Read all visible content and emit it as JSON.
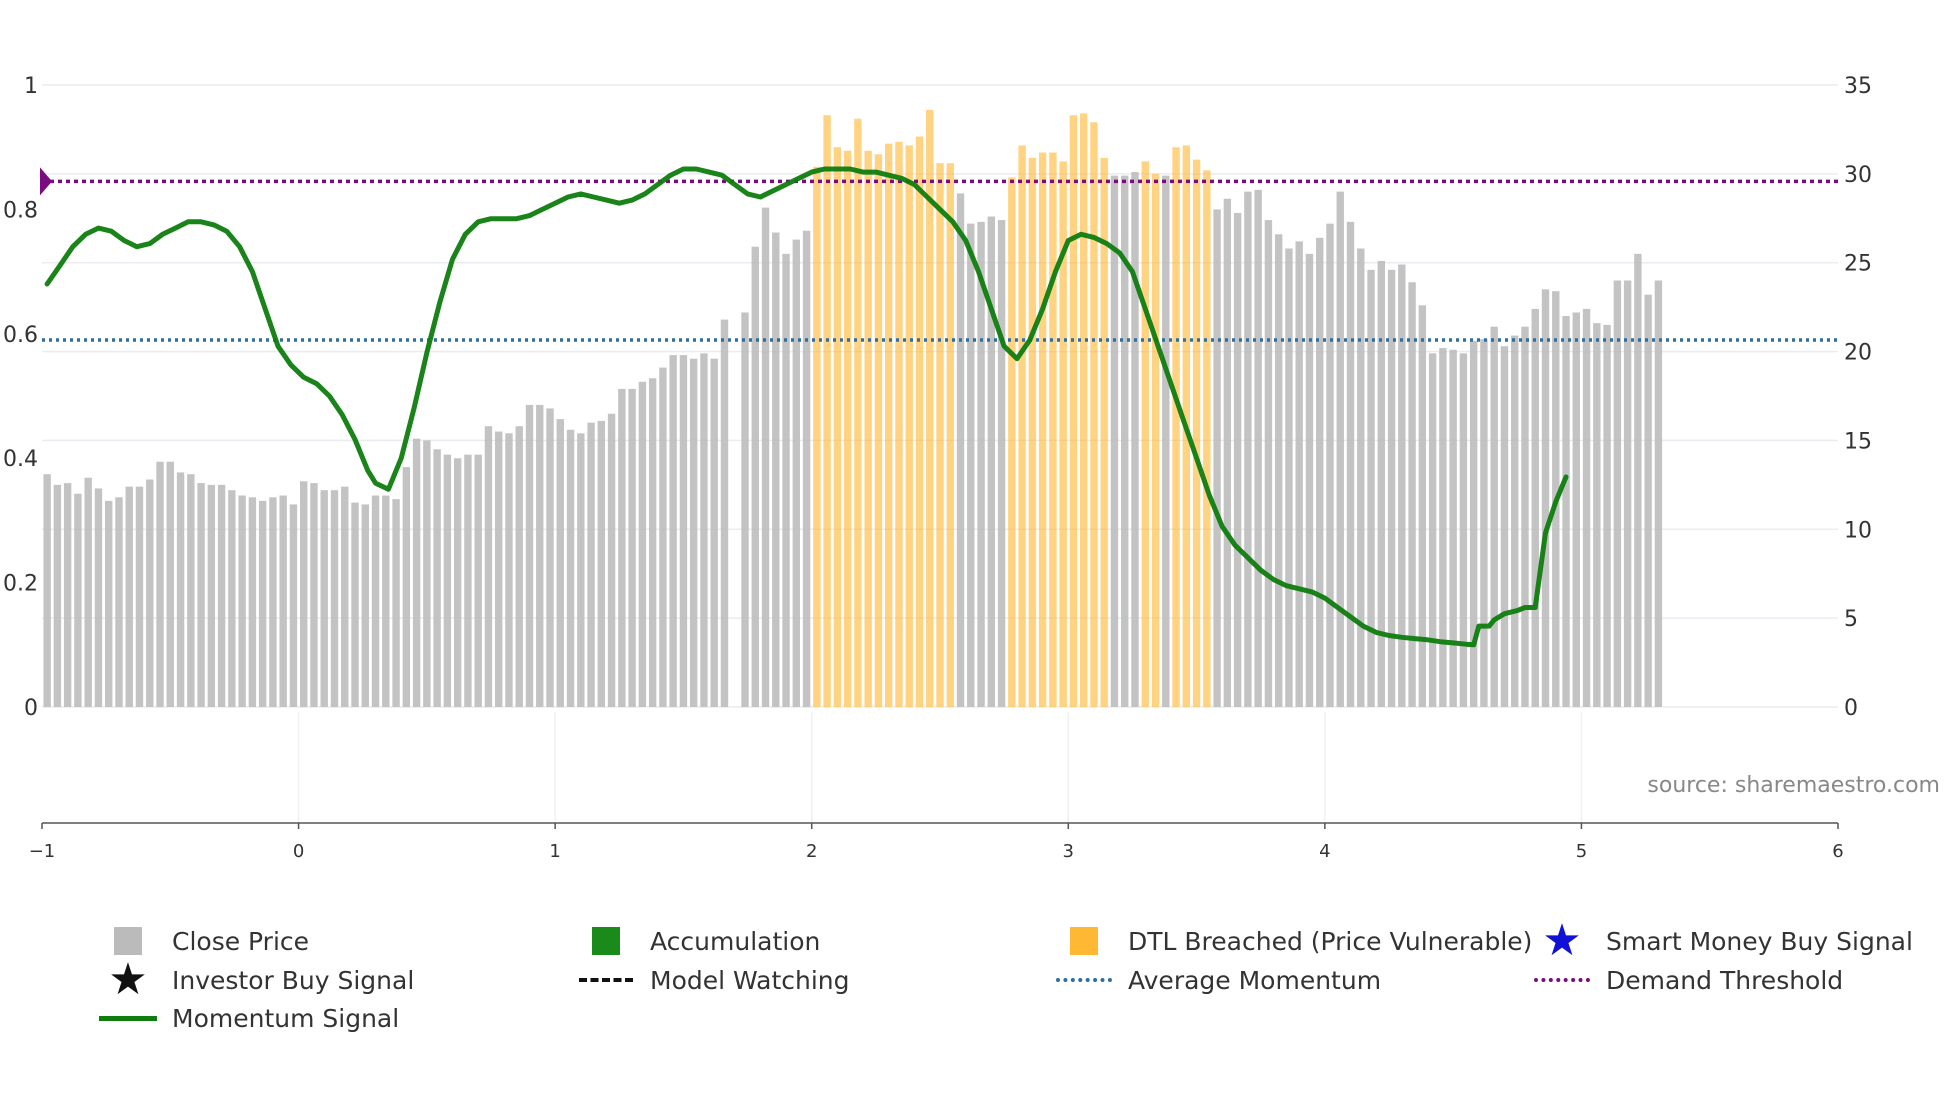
{
  "chart_data": {
    "type": "bar+line",
    "source_label": "source: sharemaestro.com",
    "x_axis": {
      "range": [
        -1,
        6
      ],
      "ticks": [
        "−1",
        "0",
        "1",
        "2",
        "3",
        "4",
        "5",
        "6"
      ]
    },
    "y_left": {
      "range": [
        0,
        1
      ],
      "ticks": [
        "0",
        "0.2",
        "0.4",
        "0.6",
        "0.8",
        "1"
      ]
    },
    "y_right": {
      "range": [
        0,
        35
      ],
      "ticks": [
        "0",
        "5",
        "10",
        "15",
        "20",
        "25",
        "30",
        "35"
      ]
    },
    "average_momentum": 0.59,
    "demand_threshold": 0.845,
    "colors": {
      "close_price": "#bbbbbb",
      "accumulation": "#1a8a1a",
      "dtl_breached": "#ffb833",
      "momentum": "#0e7d0e",
      "average_momentum": "#2e6fa3",
      "demand_threshold": "#7a0c7f",
      "smart_money": "#1010d8",
      "investor": "#111111"
    },
    "close_price_bars": [
      {
        "x": -0.98,
        "v": 13.1,
        "c": "g"
      },
      {
        "x": -0.94,
        "v": 12.5,
        "c": "g"
      },
      {
        "x": -0.9,
        "v": 12.6,
        "c": "g"
      },
      {
        "x": -0.86,
        "v": 12.0,
        "c": "g"
      },
      {
        "x": -0.82,
        "v": 12.9,
        "c": "g"
      },
      {
        "x": -0.78,
        "v": 12.3,
        "c": "g"
      },
      {
        "x": -0.74,
        "v": 11.6,
        "c": "g"
      },
      {
        "x": -0.7,
        "v": 11.8,
        "c": "g"
      },
      {
        "x": -0.66,
        "v": 12.4,
        "c": "g"
      },
      {
        "x": -0.62,
        "v": 12.4,
        "c": "g"
      },
      {
        "x": -0.58,
        "v": 12.8,
        "c": "g"
      },
      {
        "x": -0.54,
        "v": 13.8,
        "c": "g"
      },
      {
        "x": -0.5,
        "v": 13.8,
        "c": "g"
      },
      {
        "x": -0.46,
        "v": 13.2,
        "c": "g"
      },
      {
        "x": -0.42,
        "v": 13.1,
        "c": "g"
      },
      {
        "x": -0.38,
        "v": 12.6,
        "c": "g"
      },
      {
        "x": -0.34,
        "v": 12.5,
        "c": "g"
      },
      {
        "x": -0.3,
        "v": 12.5,
        "c": "g"
      },
      {
        "x": -0.26,
        "v": 12.2,
        "c": "g"
      },
      {
        "x": -0.22,
        "v": 11.9,
        "c": "g"
      },
      {
        "x": -0.18,
        "v": 11.8,
        "c": "g"
      },
      {
        "x": -0.14,
        "v": 11.6,
        "c": "g"
      },
      {
        "x": -0.1,
        "v": 11.8,
        "c": "g"
      },
      {
        "x": -0.06,
        "v": 11.9,
        "c": "g"
      },
      {
        "x": -0.02,
        "v": 11.4,
        "c": "g"
      },
      {
        "x": 0.02,
        "v": 12.7,
        "c": "g"
      },
      {
        "x": 0.06,
        "v": 12.6,
        "c": "g"
      },
      {
        "x": 0.1,
        "v": 12.2,
        "c": "g"
      },
      {
        "x": 0.14,
        "v": 12.2,
        "c": "g"
      },
      {
        "x": 0.18,
        "v": 12.4,
        "c": "g"
      },
      {
        "x": 0.22,
        "v": 11.5,
        "c": "g"
      },
      {
        "x": 0.26,
        "v": 11.4,
        "c": "g"
      },
      {
        "x": 0.3,
        "v": 11.9,
        "c": "g"
      },
      {
        "x": 0.34,
        "v": 11.9,
        "c": "g"
      },
      {
        "x": 0.38,
        "v": 11.7,
        "c": "g"
      },
      {
        "x": 0.42,
        "v": 13.5,
        "c": "g"
      },
      {
        "x": 0.46,
        "v": 15.1,
        "c": "g"
      },
      {
        "x": 0.5,
        "v": 15.0,
        "c": "g"
      },
      {
        "x": 0.54,
        "v": 14.5,
        "c": "g"
      },
      {
        "x": 0.58,
        "v": 14.2,
        "c": "g"
      },
      {
        "x": 0.62,
        "v": 14.0,
        "c": "g"
      },
      {
        "x": 0.66,
        "v": 14.2,
        "c": "g"
      },
      {
        "x": 0.7,
        "v": 14.2,
        "c": "g"
      },
      {
        "x": 0.74,
        "v": 15.8,
        "c": "g"
      },
      {
        "x": 0.78,
        "v": 15.5,
        "c": "g"
      },
      {
        "x": 0.82,
        "v": 15.4,
        "c": "g"
      },
      {
        "x": 0.86,
        "v": 15.8,
        "c": "g"
      },
      {
        "x": 0.9,
        "v": 17.0,
        "c": "g"
      },
      {
        "x": 0.94,
        "v": 17.0,
        "c": "g"
      },
      {
        "x": 0.98,
        "v": 16.8,
        "c": "g"
      },
      {
        "x": 1.02,
        "v": 16.2,
        "c": "g"
      },
      {
        "x": 1.06,
        "v": 15.6,
        "c": "g"
      },
      {
        "x": 1.1,
        "v": 15.4,
        "c": "g"
      },
      {
        "x": 1.14,
        "v": 16.0,
        "c": "g"
      },
      {
        "x": 1.18,
        "v": 16.1,
        "c": "g"
      },
      {
        "x": 1.22,
        "v": 16.5,
        "c": "g"
      },
      {
        "x": 1.26,
        "v": 17.9,
        "c": "g"
      },
      {
        "x": 1.3,
        "v": 17.9,
        "c": "g"
      },
      {
        "x": 1.34,
        "v": 18.3,
        "c": "g"
      },
      {
        "x": 1.38,
        "v": 18.5,
        "c": "g"
      },
      {
        "x": 1.42,
        "v": 19.1,
        "c": "g"
      },
      {
        "x": 1.46,
        "v": 19.8,
        "c": "g"
      },
      {
        "x": 1.5,
        "v": 19.8,
        "c": "g"
      },
      {
        "x": 1.54,
        "v": 19.6,
        "c": "g"
      },
      {
        "x": 1.58,
        "v": 19.9,
        "c": "g"
      },
      {
        "x": 1.62,
        "v": 19.6,
        "c": "g"
      },
      {
        "x": 1.66,
        "v": 21.8,
        "c": "g"
      },
      {
        "x": 1.74,
        "v": 22.2,
        "c": "g"
      },
      {
        "x": 1.78,
        "v": 25.9,
        "c": "g"
      },
      {
        "x": 1.82,
        "v": 28.1,
        "c": "g"
      },
      {
        "x": 1.86,
        "v": 26.7,
        "c": "g"
      },
      {
        "x": 1.9,
        "v": 25.5,
        "c": "g"
      },
      {
        "x": 1.94,
        "v": 26.3,
        "c": "g"
      },
      {
        "x": 1.98,
        "v": 26.8,
        "c": "g"
      },
      {
        "x": 2.02,
        "v": 30.4,
        "c": "o"
      },
      {
        "x": 2.06,
        "v": 33.3,
        "c": "o"
      },
      {
        "x": 2.1,
        "v": 31.5,
        "c": "o"
      },
      {
        "x": 2.14,
        "v": 31.3,
        "c": "o"
      },
      {
        "x": 2.18,
        "v": 33.1,
        "c": "o"
      },
      {
        "x": 2.22,
        "v": 31.3,
        "c": "o"
      },
      {
        "x": 2.26,
        "v": 31.1,
        "c": "o"
      },
      {
        "x": 2.3,
        "v": 31.7,
        "c": "o"
      },
      {
        "x": 2.34,
        "v": 31.8,
        "c": "o"
      },
      {
        "x": 2.38,
        "v": 31.6,
        "c": "o"
      },
      {
        "x": 2.42,
        "v": 32.1,
        "c": "o"
      },
      {
        "x": 2.46,
        "v": 33.6,
        "c": "o"
      },
      {
        "x": 2.5,
        "v": 30.6,
        "c": "o"
      },
      {
        "x": 2.54,
        "v": 30.6,
        "c": "o"
      },
      {
        "x": 2.58,
        "v": 28.9,
        "c": "g"
      },
      {
        "x": 2.62,
        "v": 27.2,
        "c": "g"
      },
      {
        "x": 2.66,
        "v": 27.3,
        "c": "g"
      },
      {
        "x": 2.7,
        "v": 27.6,
        "c": "g"
      },
      {
        "x": 2.74,
        "v": 27.4,
        "c": "g"
      },
      {
        "x": 2.78,
        "v": 29.8,
        "c": "o"
      },
      {
        "x": 2.82,
        "v": 31.6,
        "c": "o"
      },
      {
        "x": 2.86,
        "v": 30.9,
        "c": "o"
      },
      {
        "x": 2.9,
        "v": 31.2,
        "c": "o"
      },
      {
        "x": 2.94,
        "v": 31.2,
        "c": "o"
      },
      {
        "x": 2.98,
        "v": 30.7,
        "c": "o"
      },
      {
        "x": 3.02,
        "v": 33.3,
        "c": "o"
      },
      {
        "x": 3.06,
        "v": 33.4,
        "c": "o"
      },
      {
        "x": 3.1,
        "v": 32.9,
        "c": "o"
      },
      {
        "x": 3.14,
        "v": 30.9,
        "c": "o"
      },
      {
        "x": 3.18,
        "v": 29.9,
        "c": "g"
      },
      {
        "x": 3.22,
        "v": 29.9,
        "c": "g"
      },
      {
        "x": 3.26,
        "v": 30.1,
        "c": "g"
      },
      {
        "x": 3.3,
        "v": 30.7,
        "c": "o"
      },
      {
        "x": 3.34,
        "v": 30.0,
        "c": "o"
      },
      {
        "x": 3.38,
        "v": 29.9,
        "c": "g"
      },
      {
        "x": 3.42,
        "v": 31.5,
        "c": "o"
      },
      {
        "x": 3.46,
        "v": 31.6,
        "c": "o"
      },
      {
        "x": 3.5,
        "v": 30.8,
        "c": "o"
      },
      {
        "x": 3.54,
        "v": 30.2,
        "c": "o"
      },
      {
        "x": 3.58,
        "v": 28.0,
        "c": "g"
      },
      {
        "x": 3.62,
        "v": 28.6,
        "c": "g"
      },
      {
        "x": 3.66,
        "v": 27.8,
        "c": "g"
      },
      {
        "x": 3.7,
        "v": 29.0,
        "c": "g"
      },
      {
        "x": 3.74,
        "v": 29.1,
        "c": "g"
      },
      {
        "x": 3.78,
        "v": 27.4,
        "c": "g"
      },
      {
        "x": 3.82,
        "v": 26.6,
        "c": "g"
      },
      {
        "x": 3.86,
        "v": 25.8,
        "c": "g"
      },
      {
        "x": 3.9,
        "v": 26.2,
        "c": "g"
      },
      {
        "x": 3.94,
        "v": 25.5,
        "c": "g"
      },
      {
        "x": 3.98,
        "v": 26.4,
        "c": "g"
      },
      {
        "x": 4.02,
        "v": 27.2,
        "c": "g"
      },
      {
        "x": 4.06,
        "v": 29.0,
        "c": "g"
      },
      {
        "x": 4.1,
        "v": 27.3,
        "c": "g"
      },
      {
        "x": 4.14,
        "v": 25.8,
        "c": "g"
      },
      {
        "x": 4.18,
        "v": 24.6,
        "c": "g"
      },
      {
        "x": 4.22,
        "v": 25.1,
        "c": "g"
      },
      {
        "x": 4.26,
        "v": 24.6,
        "c": "g"
      },
      {
        "x": 4.3,
        "v": 24.9,
        "c": "g"
      },
      {
        "x": 4.34,
        "v": 23.9,
        "c": "g"
      },
      {
        "x": 4.38,
        "v": 22.6,
        "c": "g"
      },
      {
        "x": 4.42,
        "v": 19.9,
        "c": "g"
      },
      {
        "x": 4.46,
        "v": 20.2,
        "c": "g"
      },
      {
        "x": 4.5,
        "v": 20.1,
        "c": "g"
      },
      {
        "x": 4.54,
        "v": 19.9,
        "c": "g"
      },
      {
        "x": 4.58,
        "v": 20.6,
        "c": "g"
      },
      {
        "x": 4.62,
        "v": 20.7,
        "c": "g"
      },
      {
        "x": 4.66,
        "v": 21.4,
        "c": "g"
      },
      {
        "x": 4.7,
        "v": 20.3,
        "c": "g"
      },
      {
        "x": 4.74,
        "v": 20.9,
        "c": "g"
      },
      {
        "x": 4.78,
        "v": 21.4,
        "c": "g"
      },
      {
        "x": 4.82,
        "v": 22.4,
        "c": "g"
      },
      {
        "x": 4.86,
        "v": 23.5,
        "c": "g"
      },
      {
        "x": 4.9,
        "v": 23.4,
        "c": "g"
      },
      {
        "x": 4.94,
        "v": 22.0,
        "c": "g"
      },
      {
        "x": 4.98,
        "v": 22.2,
        "c": "g"
      },
      {
        "x": 5.02,
        "v": 22.4,
        "c": "g"
      },
      {
        "x": 5.06,
        "v": 21.6,
        "c": "g"
      },
      {
        "x": 5.1,
        "v": 21.5,
        "c": "g"
      },
      {
        "x": 5.14,
        "v": 24.0,
        "c": "g"
      },
      {
        "x": 5.18,
        "v": 24.0,
        "c": "g"
      },
      {
        "x": 5.22,
        "v": 25.5,
        "c": "g"
      },
      {
        "x": 5.26,
        "v": 23.2,
        "c": "g"
      },
      {
        "x": 5.3,
        "v": 24.0,
        "c": "g"
      }
    ],
    "momentum_signal": [
      [
        -0.98,
        0.68
      ],
      [
        -0.93,
        0.71
      ],
      [
        -0.88,
        0.74
      ],
      [
        -0.83,
        0.76
      ],
      [
        -0.78,
        0.77
      ],
      [
        -0.73,
        0.765
      ],
      [
        -0.68,
        0.75
      ],
      [
        -0.63,
        0.74
      ],
      [
        -0.58,
        0.745
      ],
      [
        -0.53,
        0.76
      ],
      [
        -0.48,
        0.77
      ],
      [
        -0.43,
        0.78
      ],
      [
        -0.38,
        0.78
      ],
      [
        -0.33,
        0.775
      ],
      [
        -0.28,
        0.765
      ],
      [
        -0.23,
        0.74
      ],
      [
        -0.18,
        0.7
      ],
      [
        -0.13,
        0.64
      ],
      [
        -0.08,
        0.58
      ],
      [
        -0.03,
        0.55
      ],
      [
        0.02,
        0.53
      ],
      [
        0.07,
        0.52
      ],
      [
        0.12,
        0.5
      ],
      [
        0.17,
        0.47
      ],
      [
        0.22,
        0.43
      ],
      [
        0.27,
        0.38
      ],
      [
        0.3,
        0.36
      ],
      [
        0.35,
        0.35
      ],
      [
        0.4,
        0.4
      ],
      [
        0.45,
        0.48
      ],
      [
        0.5,
        0.57
      ],
      [
        0.55,
        0.65
      ],
      [
        0.6,
        0.72
      ],
      [
        0.65,
        0.76
      ],
      [
        0.7,
        0.78
      ],
      [
        0.75,
        0.785
      ],
      [
        0.8,
        0.785
      ],
      [
        0.85,
        0.785
      ],
      [
        0.9,
        0.79
      ],
      [
        0.95,
        0.8
      ],
      [
        1.0,
        0.81
      ],
      [
        1.05,
        0.82
      ],
      [
        1.1,
        0.825
      ],
      [
        1.15,
        0.82
      ],
      [
        1.2,
        0.815
      ],
      [
        1.25,
        0.81
      ],
      [
        1.3,
        0.815
      ],
      [
        1.35,
        0.825
      ],
      [
        1.4,
        0.84
      ],
      [
        1.45,
        0.855
      ],
      [
        1.5,
        0.865
      ],
      [
        1.55,
        0.865
      ],
      [
        1.6,
        0.86
      ],
      [
        1.65,
        0.855
      ],
      [
        1.7,
        0.84
      ],
      [
        1.75,
        0.825
      ],
      [
        1.8,
        0.82
      ],
      [
        1.85,
        0.83
      ],
      [
        1.9,
        0.84
      ],
      [
        1.95,
        0.85
      ],
      [
        2.0,
        0.86
      ],
      [
        2.05,
        0.865
      ],
      [
        2.1,
        0.865
      ],
      [
        2.15,
        0.865
      ],
      [
        2.2,
        0.86
      ],
      [
        2.25,
        0.86
      ],
      [
        2.3,
        0.855
      ],
      [
        2.35,
        0.85
      ],
      [
        2.4,
        0.84
      ],
      [
        2.45,
        0.82
      ],
      [
        2.5,
        0.8
      ],
      [
        2.55,
        0.78
      ],
      [
        2.6,
        0.75
      ],
      [
        2.65,
        0.7
      ],
      [
        2.7,
        0.64
      ],
      [
        2.75,
        0.58
      ],
      [
        2.8,
        0.56
      ],
      [
        2.85,
        0.59
      ],
      [
        2.9,
        0.64
      ],
      [
        2.95,
        0.7
      ],
      [
        3.0,
        0.75
      ],
      [
        3.05,
        0.76
      ],
      [
        3.1,
        0.755
      ],
      [
        3.15,
        0.745
      ],
      [
        3.2,
        0.73
      ],
      [
        3.25,
        0.7
      ],
      [
        3.3,
        0.64
      ],
      [
        3.35,
        0.58
      ],
      [
        3.4,
        0.52
      ],
      [
        3.45,
        0.46
      ],
      [
        3.5,
        0.4
      ],
      [
        3.55,
        0.34
      ],
      [
        3.6,
        0.29
      ],
      [
        3.65,
        0.26
      ],
      [
        3.7,
        0.24
      ],
      [
        3.75,
        0.22
      ],
      [
        3.8,
        0.205
      ],
      [
        3.85,
        0.195
      ],
      [
        3.9,
        0.19
      ],
      [
        3.95,
        0.185
      ],
      [
        4.0,
        0.175
      ],
      [
        4.05,
        0.16
      ],
      [
        4.1,
        0.145
      ],
      [
        4.15,
        0.13
      ],
      [
        4.2,
        0.12
      ],
      [
        4.25,
        0.115
      ],
      [
        4.3,
        0.112
      ],
      [
        4.35,
        0.11
      ],
      [
        4.4,
        0.108
      ],
      [
        4.45,
        0.105
      ],
      [
        4.5,
        0.103
      ],
      [
        4.55,
        0.101
      ],
      [
        4.58,
        0.1
      ],
      [
        4.6,
        0.13
      ],
      [
        4.64,
        0.13
      ],
      [
        4.66,
        0.14
      ],
      [
        4.7,
        0.15
      ],
      [
        4.75,
        0.155
      ],
      [
        4.78,
        0.16
      ],
      [
        4.82,
        0.16
      ],
      [
        4.86,
        0.28
      ],
      [
        4.9,
        0.33
      ],
      [
        4.94,
        0.37
      ]
    ]
  },
  "legend": [
    {
      "label": "Close Price",
      "symbol": "square",
      "color_key": "close_price"
    },
    {
      "label": "Accumulation",
      "symbol": "square",
      "color_key": "accumulation"
    },
    {
      "label": "DTL Breached (Price Vulnerable)",
      "symbol": "square",
      "color_key": "dtl_breached"
    },
    {
      "label": "Smart Money Buy Signal",
      "symbol": "star",
      "color_key": "smart_money"
    },
    {
      "label": "Investor Buy Signal",
      "symbol": "star",
      "color_key": "investor"
    },
    {
      "label": "Model Watching",
      "symbol": "dash",
      "color_key": "investor"
    },
    {
      "label": "Average Momentum",
      "symbol": "dot",
      "color_key": "average_momentum"
    },
    {
      "label": "Demand Threshold",
      "symbol": "dot",
      "color_key": "demand_threshold"
    },
    {
      "label": "Momentum Signal",
      "symbol": "line",
      "color_key": "momentum"
    }
  ]
}
